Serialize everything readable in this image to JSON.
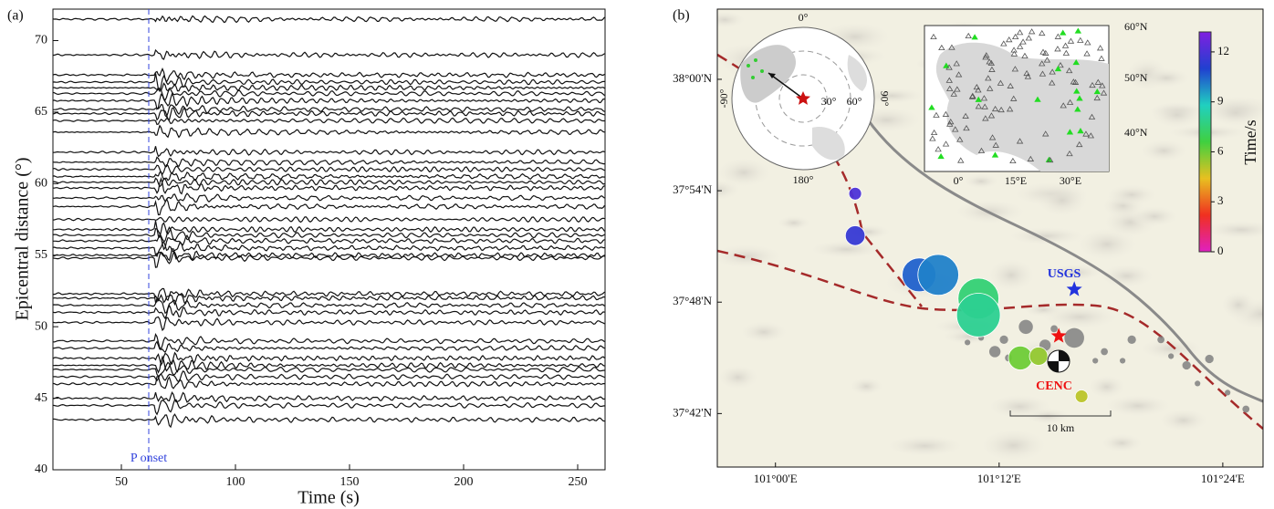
{
  "chart_data": [
    {
      "type": "waveform",
      "panel_label": "(a)",
      "xlabel": "Time (s)",
      "ylabel": "Epicentral distance (°)",
      "xlim": [
        20,
        262
      ],
      "ylim": [
        40,
        72.2
      ],
      "xticks": [
        50,
        100,
        150,
        200,
        250
      ],
      "yticks": [
        40,
        45,
        50,
        55,
        60,
        65,
        70
      ],
      "annotation": "P onset",
      "p_onset": 62,
      "trace_color": "#111111",
      "onset_color": "#3344dd",
      "traces": [
        71.5,
        69,
        67.6,
        67.1,
        66.7,
        66.3,
        65.8,
        65.2,
        64.9,
        64.4,
        63.6,
        62.2,
        61.5,
        61,
        60.5,
        60.1,
        59.7,
        59,
        58.4,
        57.5,
        56.8,
        56.4,
        56,
        55.5,
        55,
        54.8,
        52.3,
        52,
        51.5,
        51,
        50.3,
        49,
        48.5,
        47.8,
        47.3,
        47,
        46.5,
        46,
        45,
        44.5,
        43.5
      ]
    },
    {
      "type": "map",
      "panel_label": "(b)",
      "xlim": [
        100.948,
        101.436
      ],
      "ylim": [
        37.652,
        38.063
      ],
      "xticks": [
        {
          "value": 101,
          "label": "101°00'E"
        },
        {
          "value": 101.2,
          "label": "101°12'E"
        },
        {
          "value": 101.4,
          "label": "101°24'E"
        }
      ],
      "yticks": [
        {
          "value": 38,
          "label": "38°00'N"
        },
        {
          "value": 37.9,
          "label": "37°54'N"
        },
        {
          "value": 37.8,
          "label": "37°48'N"
        },
        {
          "value": 37.7,
          "label": "37°42'N"
        }
      ],
      "colorbar_label": "Time/s",
      "clim": [
        0,
        13.2
      ],
      "cticks": [
        0,
        3,
        6,
        9,
        12
      ],
      "colormap": [
        "#e020c0",
        "#f03020",
        "#e8c020",
        "#40d040",
        "#20d0c0",
        "#2040d0",
        "#8020e0"
      ],
      "events": {
        "lon": [
          101.0713,
          101.0713,
          101.1284,
          101.1456,
          101.1815,
          101.1815,
          101.219,
          101.2353,
          101.2737
        ],
        "lat": [
          37.8974,
          37.8597,
          37.8245,
          37.8245,
          37.8032,
          37.7884,
          37.7499,
          37.7515,
          37.7155
        ],
        "time": [
          12,
          11.5,
          10.5,
          10,
          7.5,
          8,
          6,
          5.5,
          5
        ],
        "magnitude": [
          3.5,
          4,
          5,
          5.5,
          5.5,
          5.7,
          4.3,
          3.9,
          3.5
        ]
      },
      "aftershocks": {
        "color": "#808080",
        "lon": [
          101.2672,
          101.2239,
          101.2043,
          101.1962,
          101.2411,
          101.2084,
          101.2941,
          101.3186,
          101.3447,
          101.3676,
          101.388,
          101.4207,
          101.3104,
          101.1717,
          101.2492,
          101.286,
          101.3537,
          101.3774,
          101.4043,
          101.1839
        ],
        "lat": [
          37.7679,
          37.7778,
          37.7663,
          37.7556,
          37.7614,
          37.7499,
          37.7556,
          37.7663,
          37.7663,
          37.7433,
          37.749,
          37.704,
          37.7474,
          37.7638,
          37.7761,
          37.7474,
          37.7515,
          37.727,
          37.7188,
          37.7679
        ],
        "magnitude": [
          4,
          3.6,
          3.2,
          3.4,
          3.4,
          3.1,
          3.1,
          3.2,
          3.1,
          3.2,
          3.2,
          3.1,
          3,
          3,
          3.1,
          3,
          3,
          3,
          3,
          3
        ]
      },
      "usgs": {
        "label": "USGS",
        "lon": 101.2672,
        "lat": 37.8114,
        "color": "#2233dd"
      },
      "cenc": {
        "label": "CENC",
        "lon": 101.2533,
        "lat": 37.7696,
        "color": "#ee1111"
      },
      "scale_label": "10 km",
      "globe_labels": [
        "0°",
        "30°",
        "60°",
        "90°",
        "-90°",
        "180°"
      ],
      "europe_labels": [
        "60°N",
        "50°N",
        "40°N",
        "0°",
        "15°E",
        "30°E"
      ]
    }
  ]
}
